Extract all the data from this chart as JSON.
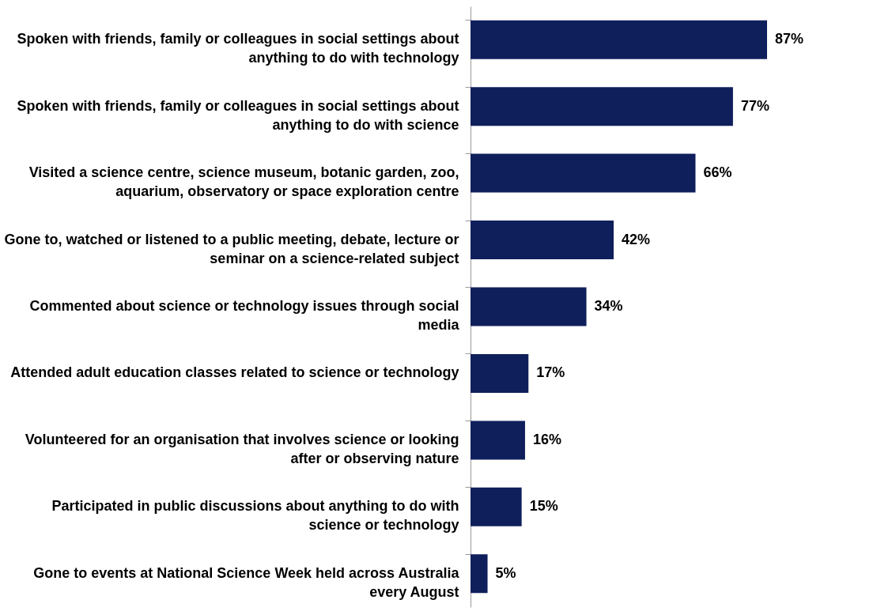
{
  "chart_data": {
    "type": "bar",
    "orientation": "horizontal",
    "categories": [
      "Spoken with friends, family or colleagues in social settings about anything to do with technology",
      "Spoken with friends, family or colleagues in social settings about anything to do with science",
      "Visited a science centre, science museum, botanic garden, zoo, aquarium, observatory or space exploration centre",
      "Gone to, watched or listened to a public meeting, debate, lecture or seminar on a science-related subject",
      "Commented about science or technology issues through social media",
      "Attended adult education classes related to science or technology",
      "Volunteered for an organisation that involves science or looking after or observing nature",
      "Participated in public discussions about anything to do with science or technology",
      "Gone to events at National Science Week held across Australia every August"
    ],
    "values": [
      87,
      77,
      66,
      42,
      34,
      17,
      16,
      15,
      5
    ],
    "value_labels": [
      "87%",
      "77%",
      "66%",
      "42%",
      "34%",
      "17%",
      "16%",
      "15%",
      "5%"
    ],
    "color": "#0f1f5c"
  }
}
